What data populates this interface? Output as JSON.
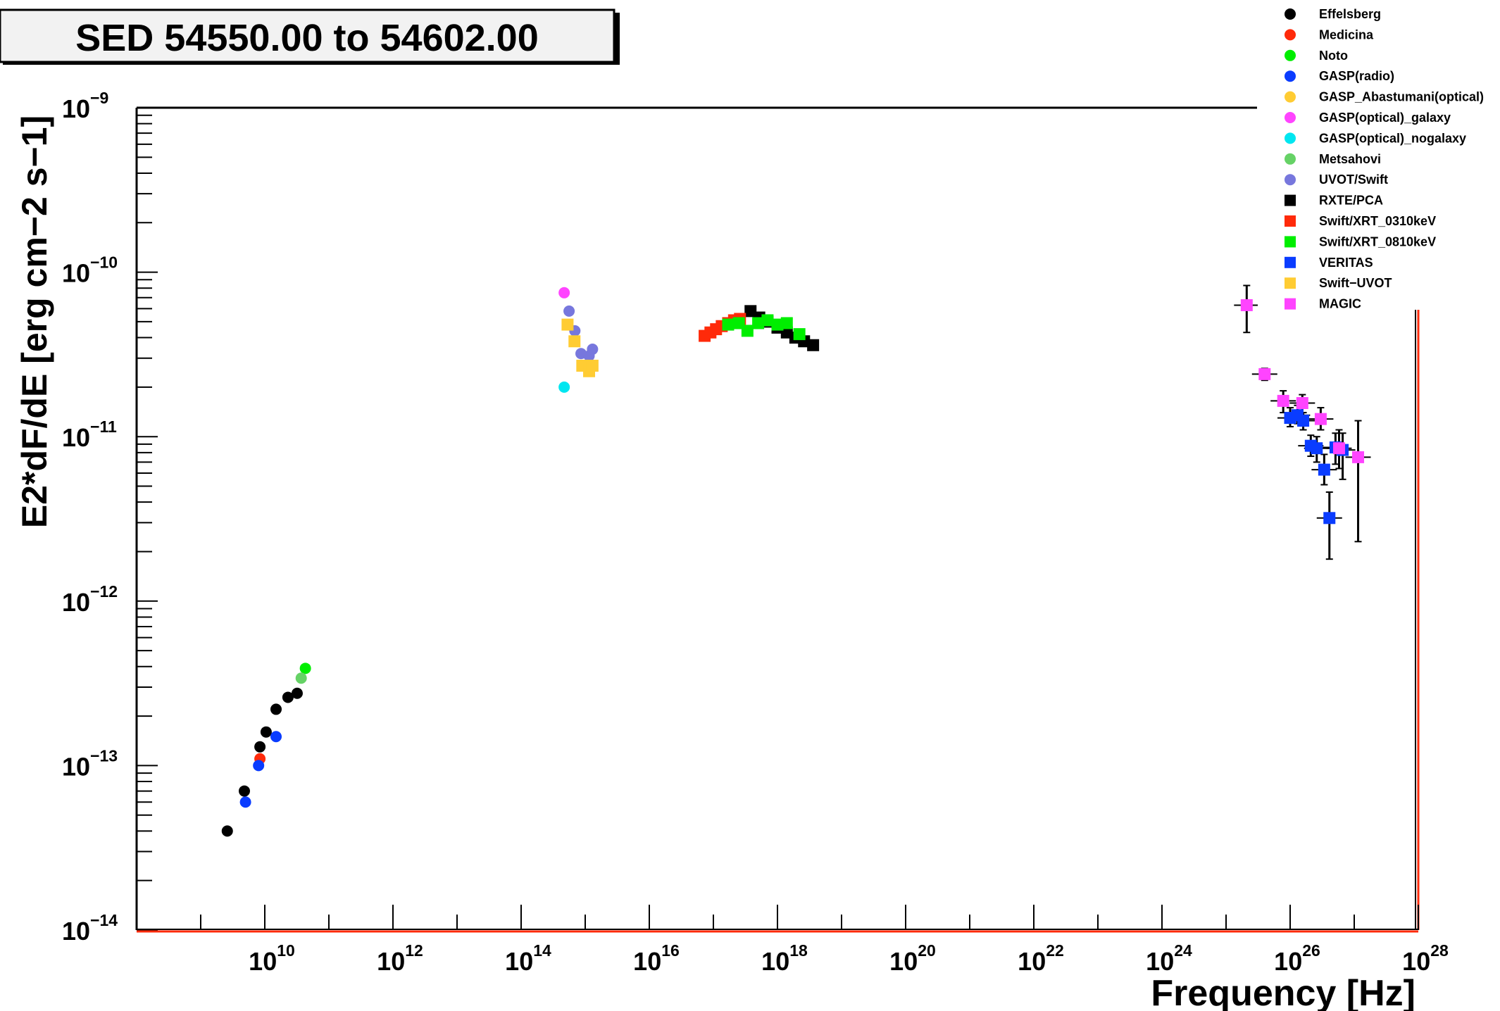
{
  "chart_data": {
    "type": "scatter",
    "title": "SED 54550.00 to 54602.00",
    "xlabel": "Frequency [Hz]",
    "ylabel": "E2*dF/dE [erg cm−2 s−1]",
    "xscale": "log",
    "yscale": "log",
    "xlim": [
      100000000.0,
      1e+28
    ],
    "ylim": [
      1e-14,
      1e-09
    ],
    "x_ticks": [
      {
        "base": "10",
        "exp": "10",
        "value": 10000000000.0
      },
      {
        "base": "10",
        "exp": "12",
        "value": 1000000000000.0
      },
      {
        "base": "10",
        "exp": "14",
        "value": 100000000000000.0
      },
      {
        "base": "10",
        "exp": "16",
        "value": 1e+16
      },
      {
        "base": "10",
        "exp": "18",
        "value": 1e+18
      },
      {
        "base": "10",
        "exp": "20",
        "value": 1e+20
      },
      {
        "base": "10",
        "exp": "22",
        "value": 1e+22
      },
      {
        "base": "10",
        "exp": "24",
        "value": 1e+24
      },
      {
        "base": "10",
        "exp": "26",
        "value": 1e+26
      },
      {
        "base": "10",
        "exp": "28",
        "value": 1e+28
      }
    ],
    "y_ticks": [
      {
        "base": "10",
        "exp": "−9",
        "value": 1e-09
      },
      {
        "base": "10",
        "exp": "−10",
        "value": 1e-10
      },
      {
        "base": "10",
        "exp": "−11",
        "value": 1e-11
      },
      {
        "base": "10",
        "exp": "−12",
        "value": 1e-12
      },
      {
        "base": "10",
        "exp": "−13",
        "value": 1e-13
      },
      {
        "base": "10",
        "exp": "−14",
        "value": 1e-14
      }
    ],
    "grid": false,
    "legend_position": "top-right",
    "series": [
      {
        "name": "Effelsberg",
        "marker": "circle",
        "color": "#000000",
        "points": [
          [
            2600000000.0,
            4e-14
          ],
          [
            4800000000.0,
            7e-14
          ],
          [
            8400000000.0,
            1.3e-13
          ],
          [
            10500000000.0,
            1.6e-13
          ],
          [
            15000000000.0,
            2.2e-13
          ],
          [
            23000000000.0,
            2.6e-13
          ],
          [
            32000000000.0,
            2.75e-13
          ]
        ]
      },
      {
        "name": "Medicina",
        "marker": "circle",
        "color": "#ff2a0a",
        "points": [
          [
            8400000000.0,
            1.1e-13
          ]
        ]
      },
      {
        "name": "Noto",
        "marker": "circle",
        "color": "#00ee00",
        "points": [
          [
            43000000000.0,
            3.9e-13
          ]
        ]
      },
      {
        "name": "GASP(radio)",
        "marker": "circle",
        "color": "#0a3cff",
        "points": [
          [
            5000000000.0,
            6e-14
          ],
          [
            8000000000.0,
            1e-13
          ],
          [
            15000000000.0,
            1.5e-13
          ]
        ]
      },
      {
        "name": "GASP_Abastumani(optical)",
        "marker": "circle",
        "color": "#ffcc33",
        "points": []
      },
      {
        "name": "GASP(optical)_galaxy",
        "marker": "circle",
        "color": "#ff44ff",
        "points": [
          [
            470000000000000.0,
            7.5e-11
          ]
        ]
      },
      {
        "name": "GASP(optical)_nogalaxy",
        "marker": "circle",
        "color": "#00e6f0",
        "points": [
          [
            470000000000000.0,
            2e-11
          ]
        ]
      },
      {
        "name": "Metsahovi",
        "marker": "circle",
        "color": "#66d266",
        "points": [
          [
            37000000000.0,
            3.4e-13
          ]
        ]
      },
      {
        "name": "UVOT/Swift",
        "marker": "circle",
        "color": "#7777dd",
        "points": [
          [
            560000000000000.0,
            5.8e-11
          ],
          [
            690000000000000.0,
            4.4e-11
          ],
          [
            860000000000000.0,
            3.2e-11
          ],
          [
            1150000000000000.0,
            3.1e-11
          ],
          [
            1300000000000000.0,
            3.4e-11
          ]
        ]
      },
      {
        "name": "RXTE/PCA",
        "marker": "square",
        "color": "#000000",
        "points": [
          [
            3.8e+17,
            5.8e-11
          ],
          [
            5.2e+17,
            5.3e-11
          ],
          [
            7e+17,
            5e-11
          ],
          [
            1e+18,
            4.6e-11
          ],
          [
            1.4e+18,
            4.3e-11
          ],
          [
            1.9e+18,
            4e-11
          ],
          [
            2.6e+18,
            3.8e-11
          ],
          [
            3.6e+18,
            3.6e-11
          ]
        ]
      },
      {
        "name": "Swift/XRT_0310keV",
        "marker": "square",
        "color": "#ff2a0a",
        "points": [
          [
            7.3e+16,
            4.1e-11
          ],
          [
            9e+16,
            4.3e-11
          ],
          [
            1.1e+17,
            4.5e-11
          ],
          [
            1.35e+17,
            4.7e-11
          ],
          [
            1.7e+17,
            4.9e-11
          ],
          [
            2.1e+17,
            5.1e-11
          ],
          [
            2.6e+17,
            5.2e-11
          ]
        ]
      },
      {
        "name": "Swift/XRT_0810keV",
        "marker": "square",
        "color": "#00ee00",
        "points": [
          [
            1.7e+17,
            4.8e-11
          ],
          [
            2.5e+17,
            4.9e-11
          ],
          [
            3.4e+17,
            4.4e-11
          ],
          [
            5e+17,
            4.9e-11
          ],
          [
            7e+17,
            5.1e-11
          ],
          [
            1e+18,
            4.8e-11
          ],
          [
            1.4e+18,
            4.9e-11
          ],
          [
            2.2e+18,
            4.2e-11
          ]
        ]
      },
      {
        "name": "VERITAS",
        "marker": "square",
        "color": "#0a3cff",
        "points": [
          [
            1e+26,
            1.3e-11,
            1.15e-11,
            1.5e-11
          ],
          [
            1.3e+26,
            1.35e-11,
            1.2e-11,
            1.55e-11
          ],
          [
            1.6e+26,
            1.25e-11,
            1.1e-11,
            1.4e-11
          ],
          [
            2.1e+26,
            8.8e-12,
            7.6e-12,
            1.02e-11
          ],
          [
            2.6e+26,
            8.5e-12,
            7e-12,
            1e-11
          ],
          [
            3.4e+26,
            6.3e-12,
            5.1e-12,
            7.8e-12
          ],
          [
            4.1e+26,
            3.2e-12,
            1.8e-12,
            4.6e-12
          ],
          [
            5.1e+26,
            8.6e-12,
            6.8e-12,
            1.05e-11
          ],
          [
            6.6e+26,
            8.3e-12,
            5.5e-12,
            1.05e-11
          ]
        ]
      },
      {
        "name": "Swift−UVOT",
        "marker": "square",
        "color": "#ffcc33",
        "points": [
          [
            530000000000000.0,
            4.8e-11
          ],
          [
            680000000000000.0,
            3.8e-11
          ],
          [
            900000000000000.0,
            2.7e-11
          ],
          [
            1150000000000000.0,
            2.5e-11
          ],
          [
            1300000000000000.0,
            2.7e-11
          ]
        ]
      },
      {
        "name": "MAGIC",
        "marker": "square",
        "color": "#ff44ff",
        "points": [
          [
            2.1e+25,
            6.3e-11,
            4.3e-11,
            8.3e-11
          ],
          [
            4e+25,
            2.4e-11,
            2.2e-11,
            2.6e-11
          ],
          [
            7.8e+25,
            1.65e-11,
            1.4e-11,
            1.9e-11
          ],
          [
            1.55e+26,
            1.6e-11,
            1.4e-11,
            1.8e-11
          ],
          [
            3e+26,
            1.28e-11,
            1.1e-11,
            1.5e-11
          ],
          [
            5.8e+26,
            8.5e-12,
            6.4e-12,
            1.1e-11
          ],
          [
            1.15e+27,
            7.5e-12,
            2.3e-12,
            1.25e-11
          ]
        ]
      }
    ]
  }
}
